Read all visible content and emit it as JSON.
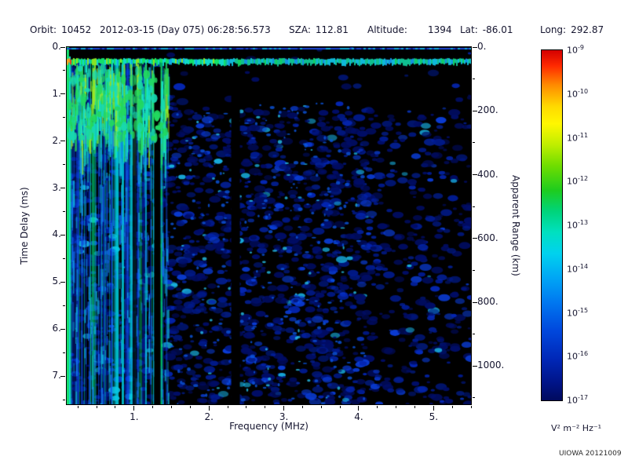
{
  "header": {
    "fields": [
      {
        "label": "Orbit:",
        "value": "10452"
      },
      {
        "label": "",
        "value": "2012-03-15 (Day 075) 06:28:56.573"
      },
      {
        "label": "SZA:",
        "value": "112.81"
      },
      {
        "label": "Altitude:",
        "value": "1394"
      },
      {
        "label": "Lat:",
        "value": "-86.01"
      },
      {
        "label": "Long:",
        "value": "292.87"
      }
    ]
  },
  "chart_data": {
    "type": "heatmap",
    "description": "Radar sounder ionogram spectrogram: received spectral density vs frequency (MHz) and time delay (ms). Bright surface/local echo band near 0.3 ms across all frequencies, strong vertical plasma-emission stripes below ~1.45 MHz, faint dark-blue noise speckle on black elsewhere, quiet dark vertical gaps near 1.0, 1.3 and 2.35 MHz.",
    "xlabel": "Frequency (MHz)",
    "ylabel_left": "Time Delay (ms)",
    "ylabel_right": "Apparent Range (km)",
    "xlim": [
      0.1,
      5.5
    ],
    "ylim_left": [
      0,
      7.6
    ],
    "ylim_right": [
      0,
      1120
    ],
    "x_ticks": {
      "values": [
        1,
        2,
        3,
        4,
        5
      ],
      "labels": [
        "1.",
        "2.",
        "3.",
        "4.",
        "5."
      ],
      "minor_step": 0.25
    },
    "y_ticks_left": {
      "values": [
        0,
        1,
        2,
        3,
        4,
        5,
        6,
        7
      ],
      "labels": [
        "0.",
        "1.",
        "2.",
        "3.",
        "4.",
        "5.",
        "6.",
        "7."
      ],
      "minor_step": 0.5
    },
    "y_ticks_right": {
      "values": [
        0,
        200,
        400,
        600,
        800,
        1000
      ],
      "labels": [
        "0.",
        "200.",
        "400.",
        "600.",
        "800.",
        "1000."
      ],
      "minor_step": 100
    },
    "colorbar": {
      "scale": "log",
      "mantissa": "10",
      "exponents": [
        "-9",
        "-10",
        "-11",
        "-12",
        "-13",
        "-14",
        "-15",
        "-16",
        "-17"
      ],
      "unit": "V² m⁻² Hz⁻¹",
      "gradient": [
        {
          "pos": 0.0,
          "color": "#d40000"
        },
        {
          "pos": 0.045,
          "color": "#ff2a00"
        },
        {
          "pos": 0.1,
          "color": "#ff8c00"
        },
        {
          "pos": 0.16,
          "color": "#ffd900"
        },
        {
          "pos": 0.21,
          "color": "#fff700"
        },
        {
          "pos": 0.27,
          "color": "#bfee00"
        },
        {
          "pos": 0.33,
          "color": "#6fdd00"
        },
        {
          "pos": 0.4,
          "color": "#1ecc1e"
        },
        {
          "pos": 0.46,
          "color": "#00d47a"
        },
        {
          "pos": 0.52,
          "color": "#00e0c0"
        },
        {
          "pos": 0.58,
          "color": "#00d2ee"
        },
        {
          "pos": 0.65,
          "color": "#00a6f5"
        },
        {
          "pos": 0.72,
          "color": "#0078f0"
        },
        {
          "pos": 0.8,
          "color": "#0048dd"
        },
        {
          "pos": 0.88,
          "color": "#0028b8"
        },
        {
          "pos": 0.95,
          "color": "#001488"
        },
        {
          "pos": 1.0,
          "color": "#000a5e"
        }
      ]
    },
    "features": {
      "echo_band_delay_ms": 0.3,
      "stripe_region_max_freq_mhz": 1.45,
      "dark_gap_freqs_mhz": [
        1.0,
        1.3,
        2.35
      ],
      "background": "black with dark-blue noise speckle"
    },
    "render_seed": 20121009
  },
  "annotation": {
    "credit": "UIOWA 20121009"
  }
}
